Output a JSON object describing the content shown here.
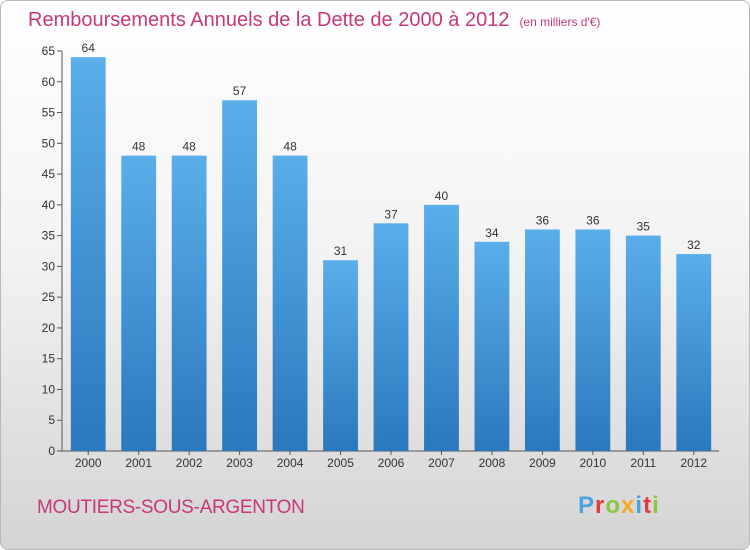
{
  "header": {
    "title": "Remboursements Annuels de la Dette de 2000 à 2012",
    "unit": "(en milliers d'€)"
  },
  "footer": {
    "town": "MOUTIERS-SOUS-ARGENTON",
    "logo_letters": [
      "P",
      "r",
      "o",
      "x",
      "i",
      "t",
      "i"
    ]
  },
  "chart_data": {
    "type": "bar",
    "title": "Remboursements Annuels de la Dette de 2000 à 2012",
    "unit": "(en milliers d'€)",
    "xlabel": "",
    "ylabel": "",
    "categories": [
      "2000",
      "2001",
      "2002",
      "2003",
      "2004",
      "2005",
      "2006",
      "2007",
      "2008",
      "2009",
      "2010",
      "2011",
      "2012"
    ],
    "values": [
      64,
      48,
      48,
      57,
      48,
      31,
      37,
      40,
      34,
      36,
      36,
      35,
      32
    ],
    "ylim": [
      0,
      65
    ],
    "yticks": [
      0,
      5,
      10,
      15,
      20,
      25,
      30,
      35,
      40,
      45,
      50,
      55,
      60,
      65
    ],
    "grid": false,
    "legend": "none",
    "colors": {
      "bar_top": "#5aaeea",
      "bar_bottom": "#2a78bd",
      "title": "#c8377a"
    }
  }
}
